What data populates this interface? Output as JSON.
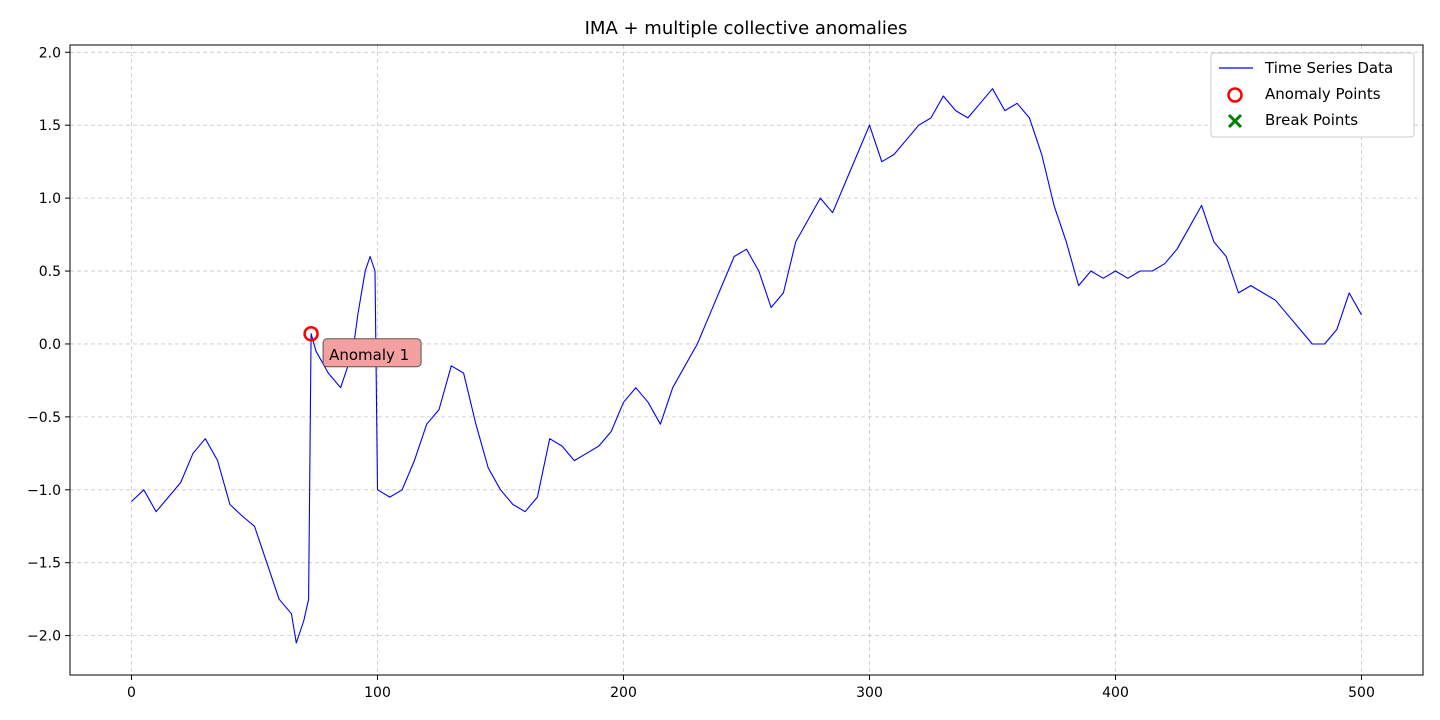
{
  "chart_data": {
    "type": "line",
    "title": "IMA + multiple collective anomalies",
    "xlabel": "",
    "ylabel": "",
    "xlim": [
      -25,
      525
    ],
    "ylim": [
      -2.27,
      2.05
    ],
    "xticks": [
      0,
      100,
      200,
      300,
      400,
      500
    ],
    "yticks": [
      -2.0,
      -1.5,
      -1.0,
      -0.5,
      0.0,
      0.5,
      1.0,
      1.5,
      2.0
    ],
    "ytick_labels": [
      "−2.0",
      "−1.5",
      "−1.0",
      "−0.5",
      "0.0",
      "0.5",
      "1.0",
      "1.5",
      "2.0"
    ],
    "grid": true,
    "legend_position": "top-right",
    "legend": [
      "Time Series Data",
      "Anomaly Points",
      "Break Points"
    ],
    "series": [
      {
        "name": "Time Series Data",
        "color": "#0000ff",
        "x": [
          0,
          5,
          10,
          15,
          20,
          25,
          30,
          35,
          40,
          45,
          50,
          55,
          60,
          65,
          67,
          70,
          72,
          73,
          75,
          80,
          85,
          90,
          92,
          95,
          97,
          99,
          100,
          105,
          110,
          115,
          120,
          125,
          130,
          135,
          140,
          145,
          150,
          155,
          160,
          165,
          170,
          175,
          180,
          185,
          190,
          195,
          200,
          205,
          210,
          215,
          220,
          225,
          230,
          235,
          240,
          245,
          250,
          255,
          260,
          265,
          270,
          275,
          280,
          285,
          290,
          295,
          300,
          305,
          310,
          315,
          320,
          325,
          330,
          335,
          340,
          345,
          350,
          355,
          360,
          365,
          370,
          375,
          380,
          385,
          390,
          395,
          400,
          405,
          410,
          415,
          420,
          425,
          430,
          435,
          440,
          445,
          450,
          455,
          460,
          465,
          470,
          475,
          480,
          485,
          490,
          495,
          500
        ],
        "y": [
          -1.08,
          -1.0,
          -1.15,
          -1.05,
          -0.95,
          -0.75,
          -0.65,
          -0.8,
          -1.1,
          -1.18,
          -1.25,
          -1.5,
          -1.75,
          -1.85,
          -2.05,
          -1.9,
          -1.75,
          0.07,
          -0.05,
          -0.2,
          -0.3,
          -0.05,
          0.2,
          0.5,
          0.6,
          0.5,
          -1.0,
          -1.05,
          -1.0,
          -0.8,
          -0.55,
          -0.45,
          -0.15,
          -0.2,
          -0.55,
          -0.85,
          -1.0,
          -1.1,
          -1.15,
          -1.05,
          -0.65,
          -0.7,
          -0.8,
          -0.75,
          -0.7,
          -0.6,
          -0.4,
          -0.3,
          -0.4,
          -0.55,
          -0.3,
          -0.15,
          0.0,
          0.2,
          0.4,
          0.6,
          0.65,
          0.5,
          0.25,
          0.35,
          0.7,
          0.85,
          1.0,
          0.9,
          1.1,
          1.3,
          1.5,
          1.25,
          1.3,
          1.4,
          1.5,
          1.55,
          1.7,
          1.6,
          1.55,
          1.65,
          1.75,
          1.6,
          1.65,
          1.55,
          1.3,
          0.95,
          0.7,
          0.4,
          0.5,
          0.45,
          0.5,
          0.45,
          0.5,
          0.5,
          0.55,
          0.65,
          0.8,
          0.95,
          0.7,
          0.6,
          0.35,
          0.4,
          0.35,
          0.3,
          0.2,
          0.1,
          0.0,
          0.0,
          0.1,
          0.35,
          0.2
        ]
      }
    ],
    "anomaly_points": [
      {
        "x": 73,
        "y": 0.07
      }
    ],
    "break_points": [],
    "annotations": [
      {
        "text": "Anomaly 1",
        "x": 73,
        "y": 0.07
      }
    ]
  }
}
